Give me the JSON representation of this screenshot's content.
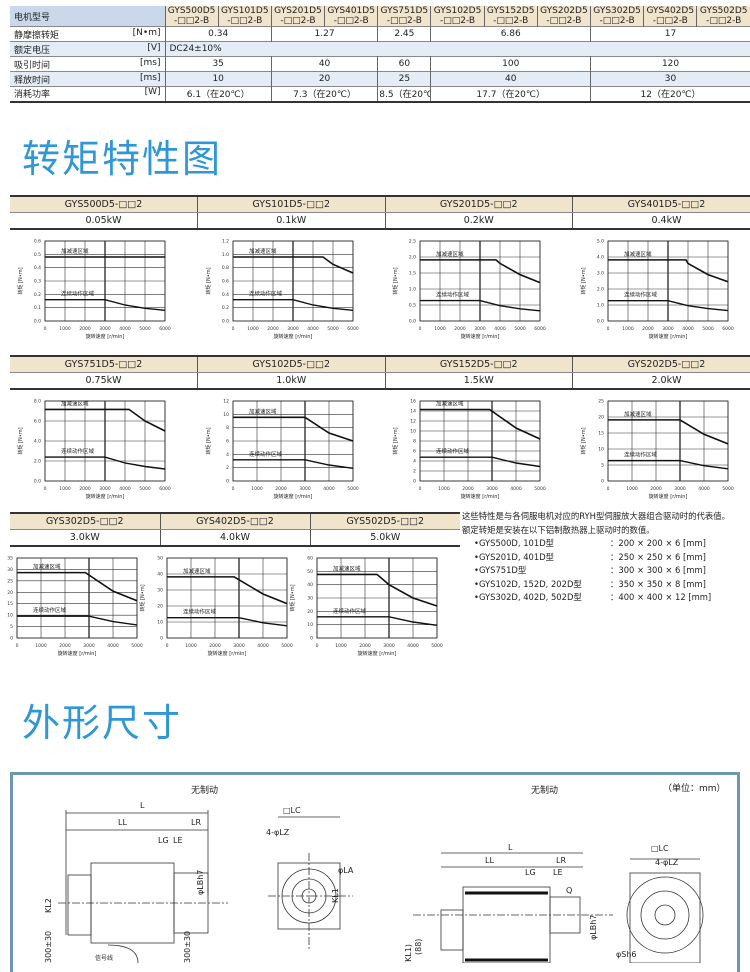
{
  "spec_table": {
    "header_label": "电机型号",
    "models": [
      "GYS500D5\n-□□2-B",
      "GYS101D5\n-□□2-B",
      "GYS201D5\n-□□2-B",
      "GYS401D5\n-□□2-B",
      "GYS751D5\n-□□2-B",
      "GYS102D5\n-□□2-B",
      "GYS152D5\n-□□2-B",
      "GYS202D5\n-□□2-B",
      "GYS302D5\n-□□2-B",
      "GYS402D5\n-□□2-B",
      "GYS502D5\n-□□2-B"
    ],
    "rows": [
      {
        "label": "静摩擦转矩",
        "unit": "[N•m]",
        "blue": false,
        "cells": [
          {
            "v": "0.34",
            "span": 2
          },
          {
            "v": "1.27",
            "span": 2
          },
          {
            "v": "2.45",
            "span": 1
          },
          {
            "v": "6.86",
            "span": 3
          },
          {
            "v": "17",
            "span": 3
          }
        ]
      },
      {
        "label": "额定电压",
        "unit": "[V]",
        "blue": true,
        "cells": [
          {
            "v": "DC24±10%",
            "span": 11,
            "left": true
          }
        ]
      },
      {
        "label": "吸引时间",
        "unit": "[ms]",
        "blue": false,
        "cells": [
          {
            "v": "35",
            "span": 2
          },
          {
            "v": "40",
            "span": 2
          },
          {
            "v": "60",
            "span": 1
          },
          {
            "v": "100",
            "span": 3
          },
          {
            "v": "120",
            "span": 3
          }
        ]
      },
      {
        "label": "释放时间",
        "unit": "[ms]",
        "blue": true,
        "cells": [
          {
            "v": "10",
            "span": 2
          },
          {
            "v": "20",
            "span": 2
          },
          {
            "v": "25",
            "span": 1
          },
          {
            "v": "40",
            "span": 3
          },
          {
            "v": "30",
            "span": 3
          }
        ]
      },
      {
        "label": "消耗功率",
        "unit": "[W]",
        "blue": false,
        "cells": [
          {
            "v": "6.1（在20℃）",
            "span": 2
          },
          {
            "v": "7.3（在20℃）",
            "span": 2
          },
          {
            "v": "8.5（在20℃）",
            "span": 1
          },
          {
            "v": "17.7（在20℃）",
            "span": 3
          },
          {
            "v": "12（在20℃）",
            "span": 3
          }
        ]
      }
    ]
  },
  "torque_section": {
    "title": "转矩特性图"
  },
  "colors": {
    "title_blue": "#2f97d6",
    "header_beige": "#f1e4cc",
    "row_blue": "#e4ecf6",
    "frame": "#6d97b0"
  },
  "chart_data": [
    {
      "type": "line",
      "model": "GYS500D5-□□2",
      "power": "0.05kW",
      "xlabel": "旋转速度 [r/min]",
      "ylabel": "转矩 [N•m]",
      "xlim": [
        0,
        6000
      ],
      "ylim": [
        0,
        0.6
      ],
      "ystep": 0.1,
      "ydec": 1,
      "peak_label": "加减速区域",
      "cont_label": "连续动作区域",
      "series": [
        {
          "name": "加减速区域",
          "x": [
            0,
            6000
          ],
          "y": [
            0.48,
            0.48
          ]
        },
        {
          "name": "连续动作区域",
          "x": [
            0,
            3000,
            4000,
            5000,
            6000
          ],
          "y": [
            0.16,
            0.16,
            0.12,
            0.095,
            0.08
          ]
        }
      ]
    },
    {
      "type": "line",
      "model": "GYS101D5-□□2",
      "power": "0.1kW",
      "xlabel": "旋转速度 [r/min]",
      "ylabel": "转矩 [N•m]",
      "xlim": [
        0,
        6000
      ],
      "ylim": [
        0,
        1.2
      ],
      "ystep": 0.2,
      "ydec": 1,
      "peak_label": "加减速区域",
      "cont_label": "连续动作区域",
      "series": [
        {
          "name": "加减速区域",
          "x": [
            0,
            4500,
            5000,
            6000
          ],
          "y": [
            0.96,
            0.96,
            0.85,
            0.72
          ]
        },
        {
          "name": "连续动作区域",
          "x": [
            0,
            3000,
            4000,
            5000,
            6000
          ],
          "y": [
            0.32,
            0.32,
            0.24,
            0.19,
            0.16
          ]
        }
      ]
    },
    {
      "type": "line",
      "model": "GYS201D5-□□2",
      "power": "0.2kW",
      "xlabel": "旋转速度 [r/min]",
      "ylabel": "转矩 [N•m]",
      "xlim": [
        0,
        6000
      ],
      "ylim": [
        0,
        2.5
      ],
      "ystep": 0.5,
      "ydec": 1,
      "peak_label": "加减速区域",
      "cont_label": "连续动作区域",
      "series": [
        {
          "name": "加减速区域",
          "x": [
            0,
            3800,
            4000,
            5000,
            6000
          ],
          "y": [
            1.91,
            1.91,
            1.8,
            1.45,
            1.2
          ]
        },
        {
          "name": "连续动作区域",
          "x": [
            0,
            3000,
            4000,
            5000,
            6000
          ],
          "y": [
            0.64,
            0.64,
            0.48,
            0.38,
            0.32
          ]
        }
      ]
    },
    {
      "type": "line",
      "model": "GYS401D5-□□2",
      "power": "0.4kW",
      "xlabel": "旋转速度 [r/min]",
      "ylabel": "转矩 [N•m]",
      "xlim": [
        0,
        6000
      ],
      "ylim": [
        0,
        5
      ],
      "ystep": 1,
      "ydec": 1,
      "peak_label": "加减速区域",
      "cont_label": "连续动作区域",
      "series": [
        {
          "name": "加减速区域",
          "x": [
            0,
            3900,
            4000,
            5000,
            6000
          ],
          "y": [
            3.82,
            3.82,
            3.6,
            2.9,
            2.45
          ]
        },
        {
          "name": "连续动作区域",
          "x": [
            0,
            3000,
            4000,
            5000,
            6000
          ],
          "y": [
            1.27,
            1.27,
            0.96,
            0.78,
            0.65
          ]
        }
      ]
    },
    {
      "type": "line",
      "model": "GYS751D5-□□2",
      "power": "0.75kW",
      "xlabel": "旋转速度 [r/min]",
      "ylabel": "转矩 [N•m]",
      "xlim": [
        0,
        6000
      ],
      "ylim": [
        0,
        8
      ],
      "ystep": 2,
      "ydec": 1,
      "peak_label": "加减速区域",
      "cont_label": "连续动作区域",
      "series": [
        {
          "name": "加减速区域",
          "x": [
            0,
            4200,
            5000,
            6000
          ],
          "y": [
            7.16,
            7.16,
            6.0,
            5.0
          ]
        },
        {
          "name": "连续动作区域",
          "x": [
            0,
            3000,
            4000,
            5000,
            6000
          ],
          "y": [
            2.39,
            2.39,
            1.8,
            1.45,
            1.2
          ]
        }
      ]
    },
    {
      "type": "line",
      "model": "GYS102D5-□□2",
      "power": "1.0kW",
      "xlabel": "旋转速度 [r/min]",
      "ylabel": "转矩 [N•m]",
      "xlim": [
        0,
        5000
      ],
      "ylim": [
        0,
        12
      ],
      "ystep": 2,
      "ydec": 0,
      "peak_label": "加减速区域",
      "cont_label": "连续动作区域",
      "series": [
        {
          "name": "加减速区域",
          "x": [
            0,
            3000,
            4000,
            5000
          ],
          "y": [
            9.55,
            9.55,
            7.2,
            6.0
          ]
        },
        {
          "name": "连续动作区域",
          "x": [
            0,
            3000,
            4000,
            5000
          ],
          "y": [
            3.18,
            3.18,
            2.4,
            1.9
          ]
        }
      ]
    },
    {
      "type": "line",
      "model": "GYS152D5-□□2",
      "power": "1.5kW",
      "xlabel": "旋转速度 [r/min]",
      "ylabel": "转矩 [N•m]",
      "xlim": [
        0,
        5000
      ],
      "ylim": [
        0,
        16
      ],
      "ystep": 2,
      "ydec": 0,
      "peak_label": "加减速区域",
      "cont_label": "连续动作区域",
      "series": [
        {
          "name": "加减速区域",
          "x": [
            0,
            2900,
            4000,
            5000
          ],
          "y": [
            14.3,
            14.3,
            10.6,
            8.4
          ]
        },
        {
          "name": "连续动作区域",
          "x": [
            0,
            3000,
            4000,
            5000
          ],
          "y": [
            4.77,
            4.77,
            3.6,
            2.9
          ]
        }
      ]
    },
    {
      "type": "line",
      "model": "GYS202D5-□□2",
      "power": "2.0kW",
      "xlabel": "旋转速度 [r/min]",
      "ylabel": "转矩 [N•m]",
      "xlim": [
        0,
        5000
      ],
      "ylim": [
        0,
        25
      ],
      "ystep": 5,
      "ydec": 0,
      "peak_label": "加减速区域",
      "cont_label": "连续动作区域",
      "series": [
        {
          "name": "加减速区域",
          "x": [
            0,
            3000,
            4000,
            5000
          ],
          "y": [
            19.1,
            19.1,
            14.6,
            11.6
          ]
        },
        {
          "name": "连续动作区域",
          "x": [
            0,
            3000,
            4000,
            5000
          ],
          "y": [
            6.37,
            6.37,
            4.8,
            3.8
          ]
        }
      ]
    },
    {
      "type": "line",
      "model": "GYS302D5-□□2",
      "power": "3.0kW",
      "xlabel": "旋转速度 [r/min]",
      "ylabel": "转矩 [N•m]",
      "xlim": [
        0,
        5000
      ],
      "ylim": [
        0,
        35
      ],
      "ystep": 5,
      "ydec": 0,
      "peak_label": "加减速区域",
      "cont_label": "连续动作区域",
      "series": [
        {
          "name": "加减速区域",
          "x": [
            0,
            2850,
            4000,
            5000
          ],
          "y": [
            28.6,
            28.6,
            20.5,
            16.3
          ]
        },
        {
          "name": "连续动作区域",
          "x": [
            0,
            3000,
            4000,
            5000
          ],
          "y": [
            9.55,
            9.55,
            7.2,
            5.7
          ]
        }
      ]
    },
    {
      "type": "line",
      "model": "GYS402D5-□□2",
      "power": "4.0kW",
      "xlabel": "旋转速度 [r/min]",
      "ylabel": "转矩 [N•m]",
      "xlim": [
        0,
        5000
      ],
      "ylim": [
        0,
        50
      ],
      "ystep": 10,
      "ydec": 0,
      "peak_label": "加减速区域",
      "cont_label": "连续动作区域",
      "series": [
        {
          "name": "加减速区域",
          "x": [
            0,
            2800,
            4000,
            5000
          ],
          "y": [
            38.2,
            38.2,
            27.5,
            21.5
          ]
        },
        {
          "name": "连续动作区域",
          "x": [
            0,
            3000,
            4000,
            5000
          ],
          "y": [
            12.7,
            12.7,
            9.5,
            7.6
          ]
        }
      ]
    },
    {
      "type": "line",
      "model": "GYS502D5-□□2",
      "power": "5.0kW",
      "xlabel": "旋转速度 [r/min]",
      "ylabel": "转矩 [N•m]",
      "xlim": [
        0,
        5000
      ],
      "ylim": [
        0,
        60
      ],
      "ystep": 10,
      "ydec": 0,
      "peak_label": "加减速区域",
      "cont_label": "连续动作区域",
      "series": [
        {
          "name": "加减速区域",
          "x": [
            0,
            2500,
            3000,
            4000,
            5000
          ],
          "y": [
            47.7,
            47.7,
            40,
            30,
            24
          ]
        },
        {
          "name": "连续动作区域",
          "x": [
            0,
            3000,
            4000,
            5000
          ],
          "y": [
            15.9,
            15.9,
            12,
            9.5
          ]
        }
      ]
    }
  ],
  "notes": {
    "lines": [
      "这些特性是与各伺服电机对应的RYH型伺服放大器组合驱动时的代表值。",
      "额定转矩是安装在以下铝制散热器上驱动时的数值。"
    ],
    "items": [
      {
        "model": "•GYS500D, 101D型",
        "size": "：200 × 200 × 6 [mm]"
      },
      {
        "model": "•GYS201D, 401D型",
        "size": "：250 × 250 × 6 [mm]"
      },
      {
        "model": "•GYS751D型",
        "size": "：300 × 300 × 6 [mm]"
      },
      {
        "model": "•GYS102D, 152D, 202D型",
        "size": "：350 × 350 × 8 [mm]"
      },
      {
        "model": "•GYS302D, 402D, 502D型",
        "size": "：400 × 400 × 12 [mm]"
      }
    ]
  },
  "dimensions_section": {
    "title": "外形尺寸",
    "unit_note": "（单位：mm）",
    "left_caption": "无制动",
    "right_caption": "无制动",
    "labels": {
      "L": "L",
      "LL": "LL",
      "LR": "LR",
      "LG": "LG",
      "LE": "LE",
      "LC": "□LC",
      "LZ": "4-φLZ",
      "LA": "φLA",
      "LB": "φLBh7",
      "KL1": "KL1",
      "KL2": "KL2",
      "KL1p": "(KL1)",
      "p88": "(88)",
      "Q": "Q",
      "S": "φSh6",
      "c300a": "300±30",
      "c300b": "300±30",
      "sig": "信号线"
    }
  }
}
